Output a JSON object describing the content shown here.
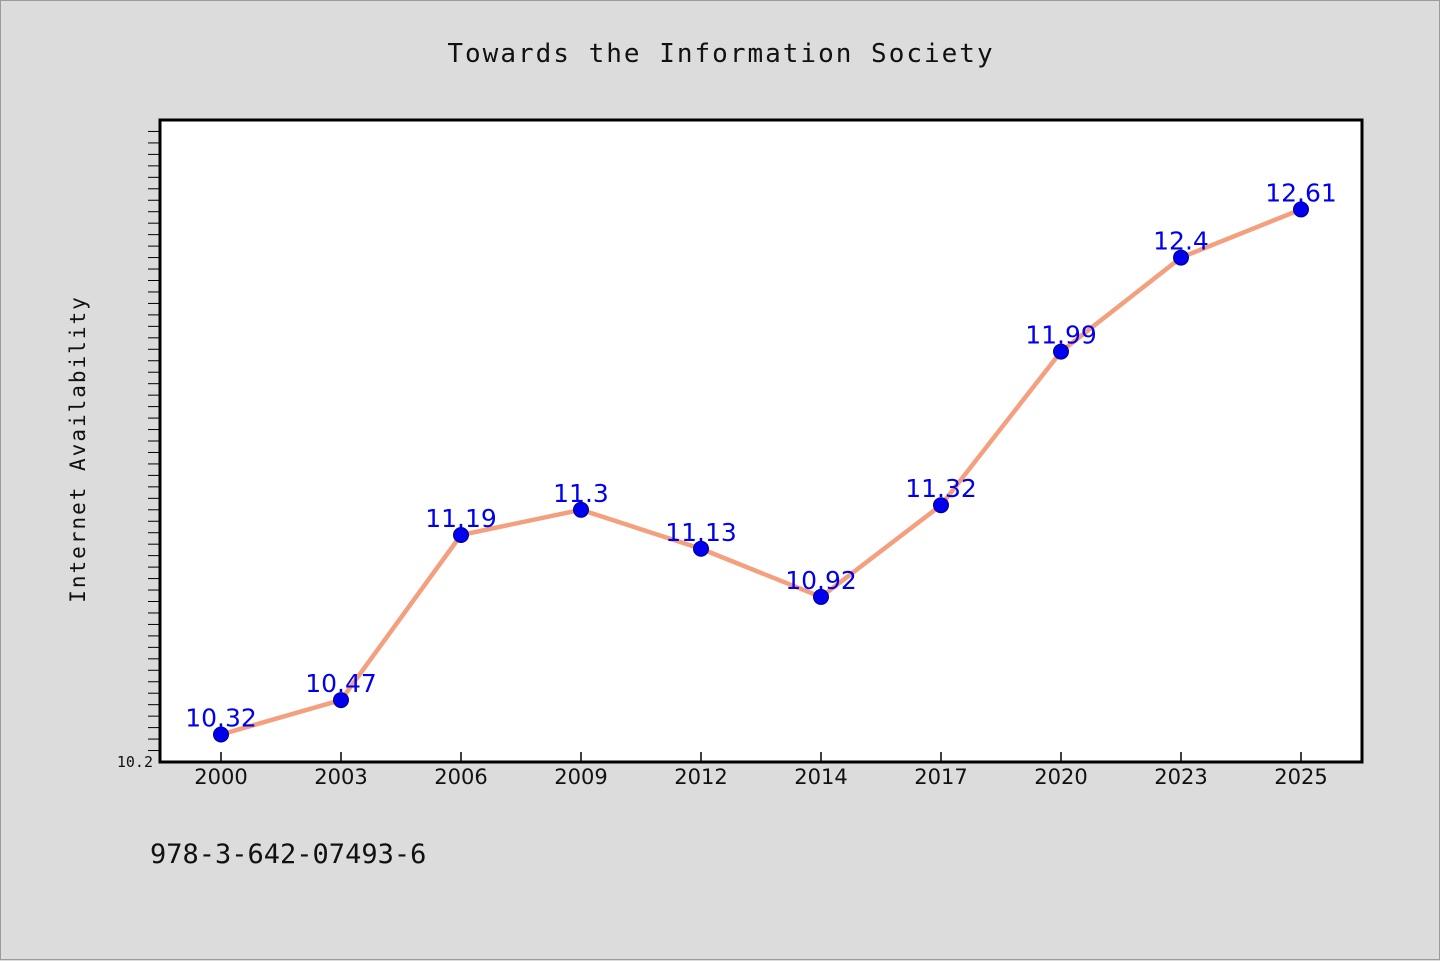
{
  "chart_data": {
    "type": "line",
    "title": "Towards the Information Society",
    "xlabel": "",
    "ylabel": "Internet Availability",
    "categories": [
      "2000",
      "2003",
      "2006",
      "2009",
      "2012",
      "2014",
      "2017",
      "2020",
      "2023",
      "2025"
    ],
    "series": [
      {
        "values": [
          10.32,
          10.47,
          11.19,
          11.3,
          11.13,
          10.92,
          11.32,
          11.99,
          12.4,
          12.61
        ],
        "labels": [
          "10.32",
          "10.47",
          "11.19",
          "11.3",
          "11.13",
          "10.92",
          "11.32",
          "11.99",
          "12.4",
          "12.61"
        ]
      }
    ],
    "y_tick_labels": [
      "10.2"
    ],
    "ylim": [
      10.2,
      13.0
    ],
    "grid": false,
    "legend": "none",
    "colors": {
      "line": "#f4a07e",
      "marker": "#0000ee",
      "marker_edge": "#00008b",
      "data_label": "#0000ee",
      "plot_background": "#ffffff",
      "figure_background": "#dcdcdc"
    }
  },
  "footer": {
    "isbn": "978-3-642-07493-6"
  }
}
